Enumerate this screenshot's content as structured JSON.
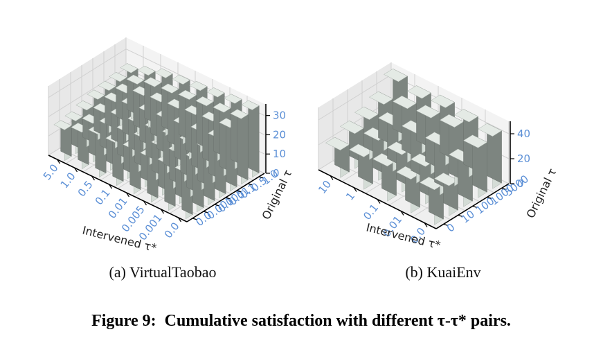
{
  "figure_caption": {
    "label": "Figure 9:",
    "text": "Cumulative satisfaction with different τ-τ* pairs."
  },
  "chart_data": [
    {
      "type": "bar3d",
      "subcaption": "(a) VirtualTaobao",
      "xlabel": "Intervened τ*",
      "ylabel": "Original τ",
      "x_categories": [
        "0.0",
        "0.001",
        "0.005",
        "0.01",
        "0.1",
        "0.5",
        "1.0",
        "5.0"
      ],
      "y_categories": [
        "0.0",
        "0.001",
        "0.005",
        "0.01",
        "0.1",
        "0.5",
        "1.0"
      ],
      "z_ticks": [
        "0",
        "10",
        "20",
        "30"
      ],
      "zlim": [
        0,
        36
      ],
      "values": [
        [
          24,
          27,
          29,
          31,
          33,
          34,
          35
        ],
        [
          24,
          26,
          28,
          30,
          32,
          33,
          34
        ],
        [
          23,
          25,
          27,
          29,
          31,
          32,
          33
        ],
        [
          23,
          25,
          26,
          28,
          30,
          31,
          32
        ],
        [
          22,
          24,
          25,
          27,
          29,
          30,
          31
        ],
        [
          22,
          23,
          24,
          26,
          28,
          29,
          30
        ],
        [
          19,
          20,
          22,
          24,
          25,
          26,
          27
        ],
        [
          16,
          17,
          19,
          21,
          22,
          23,
          24
        ]
      ],
      "bar_color": "#d4dcd6",
      "pane_color": "#f0f0f0"
    },
    {
      "type": "bar3d",
      "subcaption": "(b) KuaiEnv",
      "xlabel": "Intervened τ*",
      "ylabel": "Original τ",
      "x_categories": [
        "0.0",
        "0.01",
        "0.1",
        "1",
        "10"
      ],
      "y_categories": [
        "0",
        "10",
        "100",
        "1000",
        "5000"
      ],
      "z_ticks": [
        "0",
        "20",
        "40"
      ],
      "zlim": [
        0,
        50
      ],
      "values": [
        [
          28,
          24,
          36,
          40,
          42
        ],
        [
          27,
          30,
          40,
          47,
          44
        ],
        [
          28,
          30,
          40,
          45,
          46
        ],
        [
          26,
          32,
          37,
          43,
          44
        ],
        [
          22,
          28,
          32,
          37,
          48
        ]
      ],
      "bar_color": "#d4dcd6",
      "pane_color": "#f0f0f0"
    }
  ]
}
